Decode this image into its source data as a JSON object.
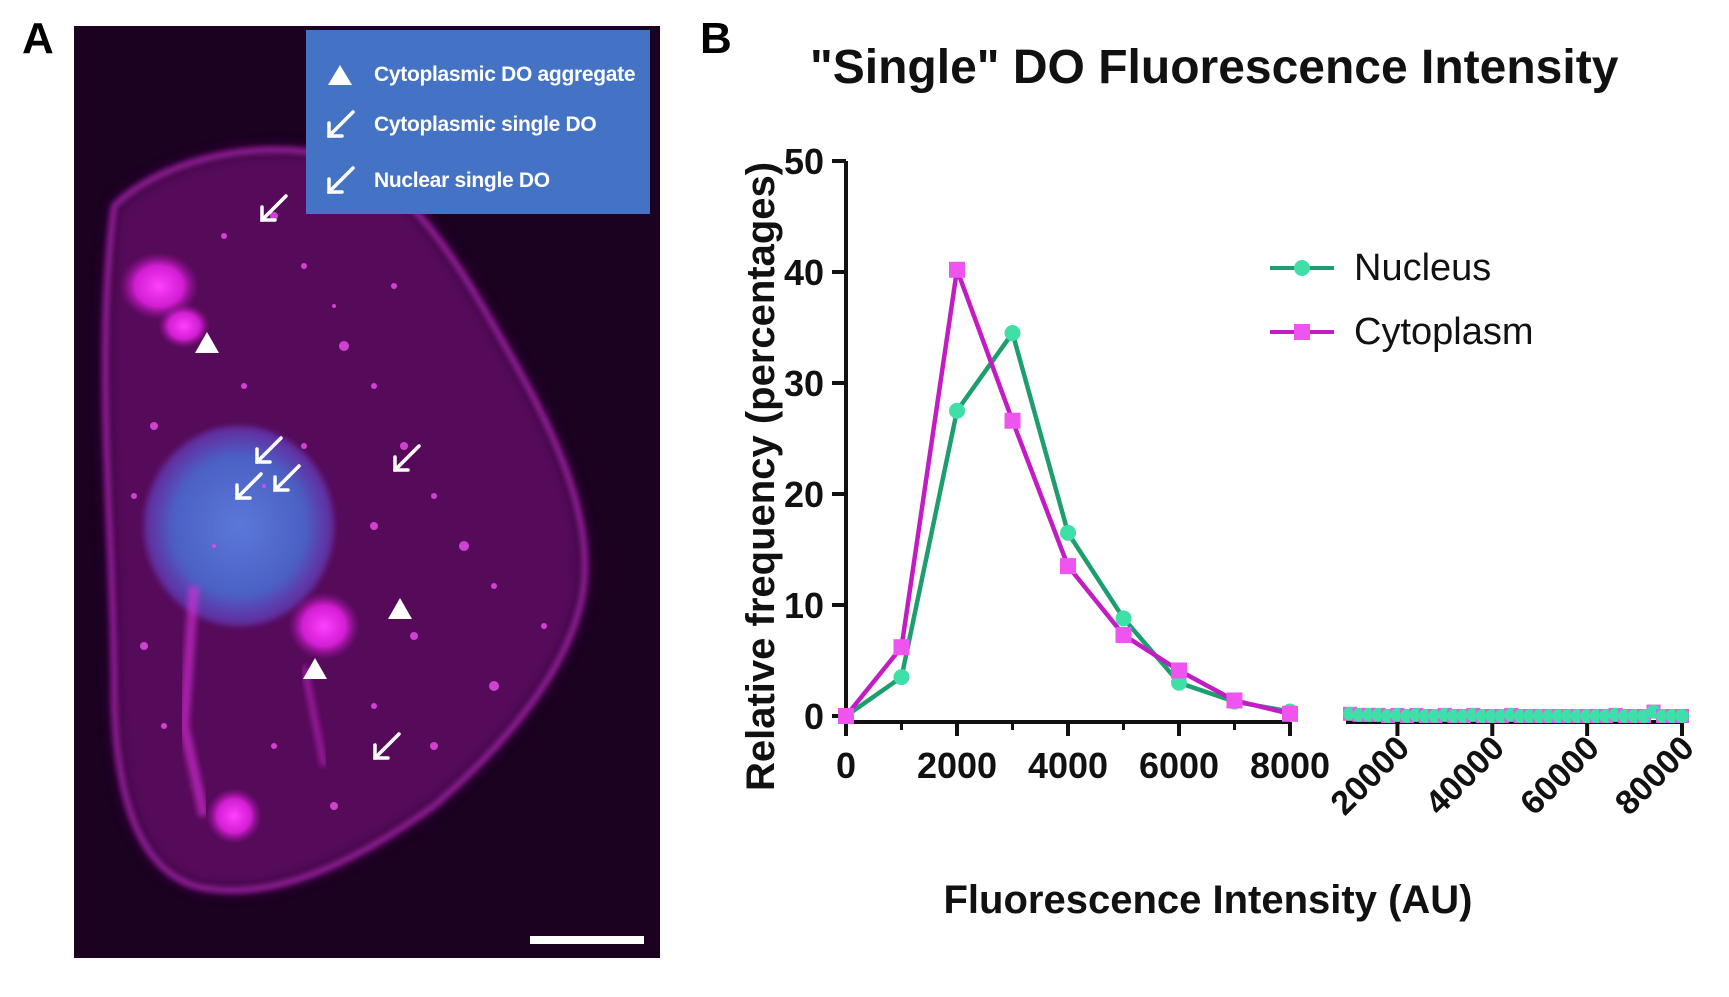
{
  "panel_a": {
    "letter": "A",
    "legend": [
      {
        "symbol": "white-triangle-icon",
        "label": "Cytoplasmic DO aggregate"
      },
      {
        "symbol": "white-arrow-icon",
        "label": "Cytoplasmic single DO"
      },
      {
        "symbol": "white-arrow-icon",
        "label": "Nuclear single DO"
      }
    ],
    "colors": {
      "background": "#1a0220",
      "membrane": "#c020c0",
      "nucleus": "#4a6fd6",
      "legend_box": "#4472c4"
    }
  },
  "panel_b": {
    "letter": "B"
  },
  "chart_data": {
    "type": "line",
    "title": "\"Single\" DO Fluorescence Intensity",
    "xlabel": "Fluorescence Intensity (AU)",
    "ylabel": "Relative frequency (percentages)",
    "ylim": [
      0,
      50
    ],
    "yticks": [
      "0",
      "10",
      "20",
      "30",
      "40",
      "50"
    ],
    "x_segments": [
      {
        "range": [
          0,
          8000
        ],
        "ticks": [
          "0",
          "2000",
          "4000",
          "6000",
          "8000"
        ]
      },
      {
        "range": [
          10000,
          80000
        ],
        "ticks": [
          "20000",
          "40000",
          "60000",
          "80000"
        ],
        "tick_rotation": "-45deg"
      }
    ],
    "legend_position": "upper-right",
    "grid": false,
    "series": [
      {
        "name": "Nucleus",
        "color": "#1e9e6e",
        "marker_color": "#3fe0a8",
        "marker": "circle",
        "x": [
          0,
          1000,
          2000,
          3000,
          4000,
          5000,
          6000,
          7000,
          8000
        ],
        "y": [
          0,
          3.5,
          27.5,
          34.5,
          16.5,
          8.8,
          3.0,
          1.3,
          0.4
        ]
      },
      {
        "name": "Cytoplasm",
        "color": "#c41cc4",
        "marker_color": "#ee55ee",
        "marker": "square",
        "x": [
          0,
          1000,
          2000,
          3000,
          4000,
          5000,
          6000,
          7000,
          8000
        ],
        "y": [
          0,
          6.2,
          40.2,
          26.6,
          13.5,
          7.3,
          4.1,
          1.4,
          0.2
        ]
      }
    ],
    "tail_points": {
      "x": [
        10000,
        12000,
        14000,
        16000,
        18000,
        20000,
        22000,
        24000,
        26000,
        28000,
        30000,
        32000,
        34000,
        36000,
        38000,
        40000,
        42000,
        44000,
        46000,
        48000,
        50000,
        52000,
        54000,
        56000,
        58000,
        60000,
        62000,
        64000,
        66000,
        68000,
        70000,
        72000,
        74000,
        76000,
        78000,
        80000
      ],
      "y": [
        0.2,
        0.1,
        0.1,
        0.1,
        0,
        0.1,
        0,
        0.1,
        0,
        0,
        0.1,
        0,
        0,
        0.1,
        0,
        0,
        0,
        0.1,
        0,
        0,
        0,
        0,
        0,
        0,
        0,
        0,
        0,
        0,
        0.1,
        0,
        0,
        0,
        0.4,
        0,
        0,
        0
      ]
    }
  }
}
